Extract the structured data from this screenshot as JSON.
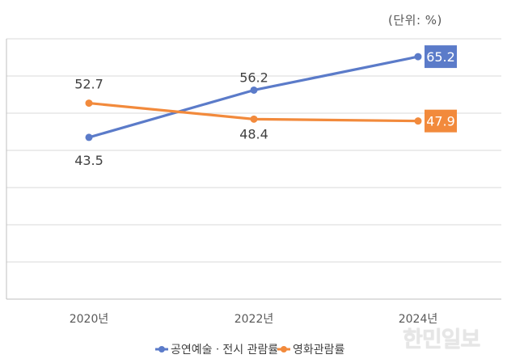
{
  "unit_label": "(단위: %)",
  "watermark": "한민일보",
  "chart_data": {
    "type": "line",
    "title": "",
    "xlabel": "",
    "ylabel": "",
    "categories": [
      "2020년",
      "2022년",
      "2024년"
    ],
    "ylim": [
      0,
      70
    ],
    "grid": true,
    "legend": "bottom",
    "series": [
      {
        "name": "공연예술ㆍ전시 관람률",
        "values": [
          43.5,
          56.2,
          65.2
        ],
        "color": "#5B7BC9",
        "labels": [
          "43.5",
          "56.2",
          "65.2"
        ]
      },
      {
        "name": "영화관람률",
        "values": [
          52.7,
          48.4,
          47.9
        ],
        "color": "#F28A3C",
        "labels": [
          "52.7",
          "48.4",
          "47.9"
        ]
      }
    ]
  }
}
